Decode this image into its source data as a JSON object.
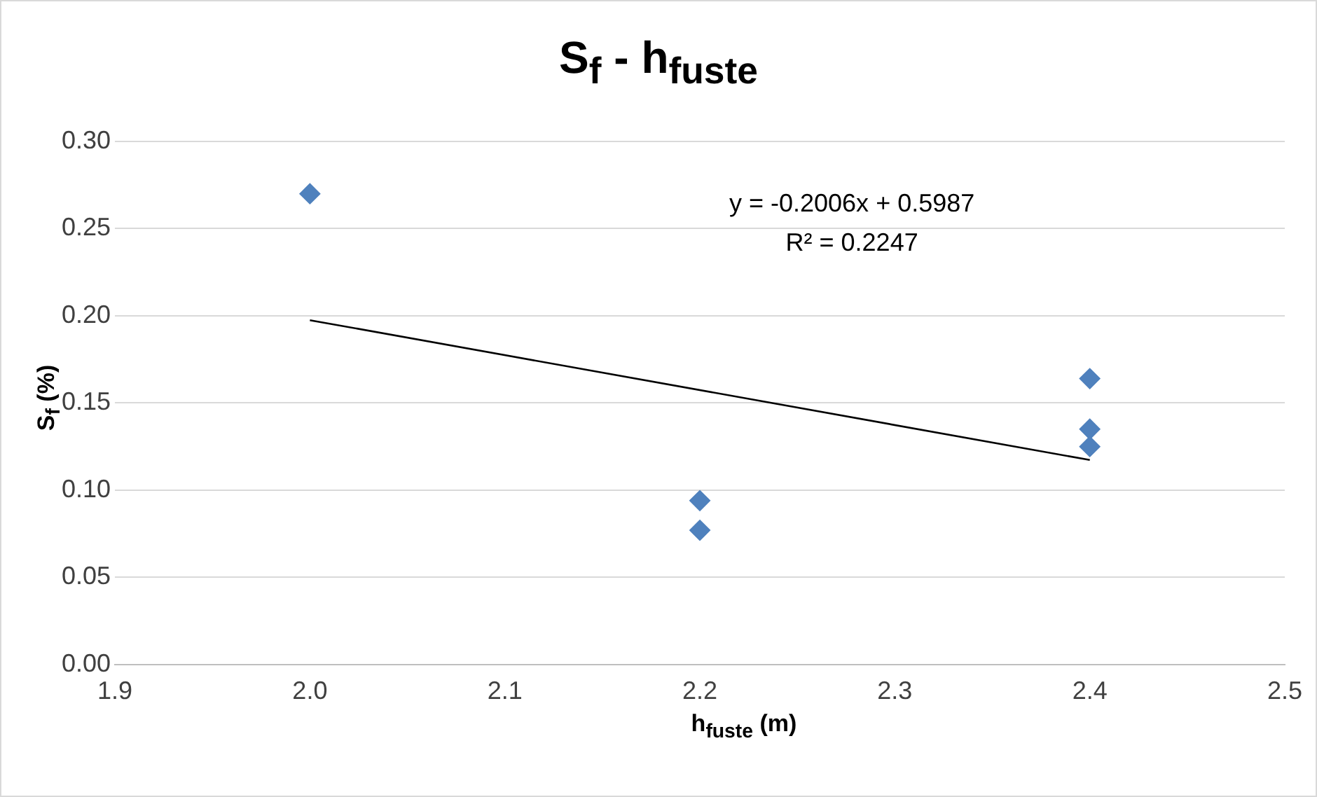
{
  "chart_data": {
    "type": "scatter",
    "title": "S$_{f}$ - h$_{fuste}$",
    "xlabel": "h$_{fuste}$ (m)",
    "ylabel": "S$_{f}$ (%)",
    "annotations": [
      "y = -0.2006x + 0.5987",
      "R² = 0.2247"
    ],
    "xlim": [
      1.9,
      2.5
    ],
    "xticks": [
      1.9,
      {
        "value": 2,
        "label": "2.0"
      },
      2.1,
      2.2,
      2.3,
      2.4,
      2.5
    ],
    "ylim": [
      0,
      0.3
    ],
    "yticks": [
      {
        "value": 0,
        "label": "0.00"
      },
      {
        "value": 0.05,
        "label": "0.05"
      },
      {
        "value": 0.1,
        "label": "0.10"
      },
      {
        "value": 0.15,
        "label": "0.15"
      },
      {
        "value": 0.2,
        "label": "0.20"
      },
      {
        "value": 0.25,
        "label": "0.25"
      },
      {
        "value": 0.3,
        "label": "0.30"
      }
    ],
    "grid": "y",
    "marker": "diamond",
    "series": [
      {
        "color": "#4f81bd",
        "x": [
          2.0,
          2.2,
          2.2,
          2.4,
          2.4,
          2.4
        ],
        "values": [
          0.27,
          0.094,
          0.077,
          0.164,
          0.135,
          0.125
        ]
      },
      {
        "type": "line",
        "marker": "none",
        "color": "#000000",
        "x": [
          2.0,
          2.4
        ],
        "values": [
          0.1975,
          0.1173
        ]
      }
    ]
  }
}
